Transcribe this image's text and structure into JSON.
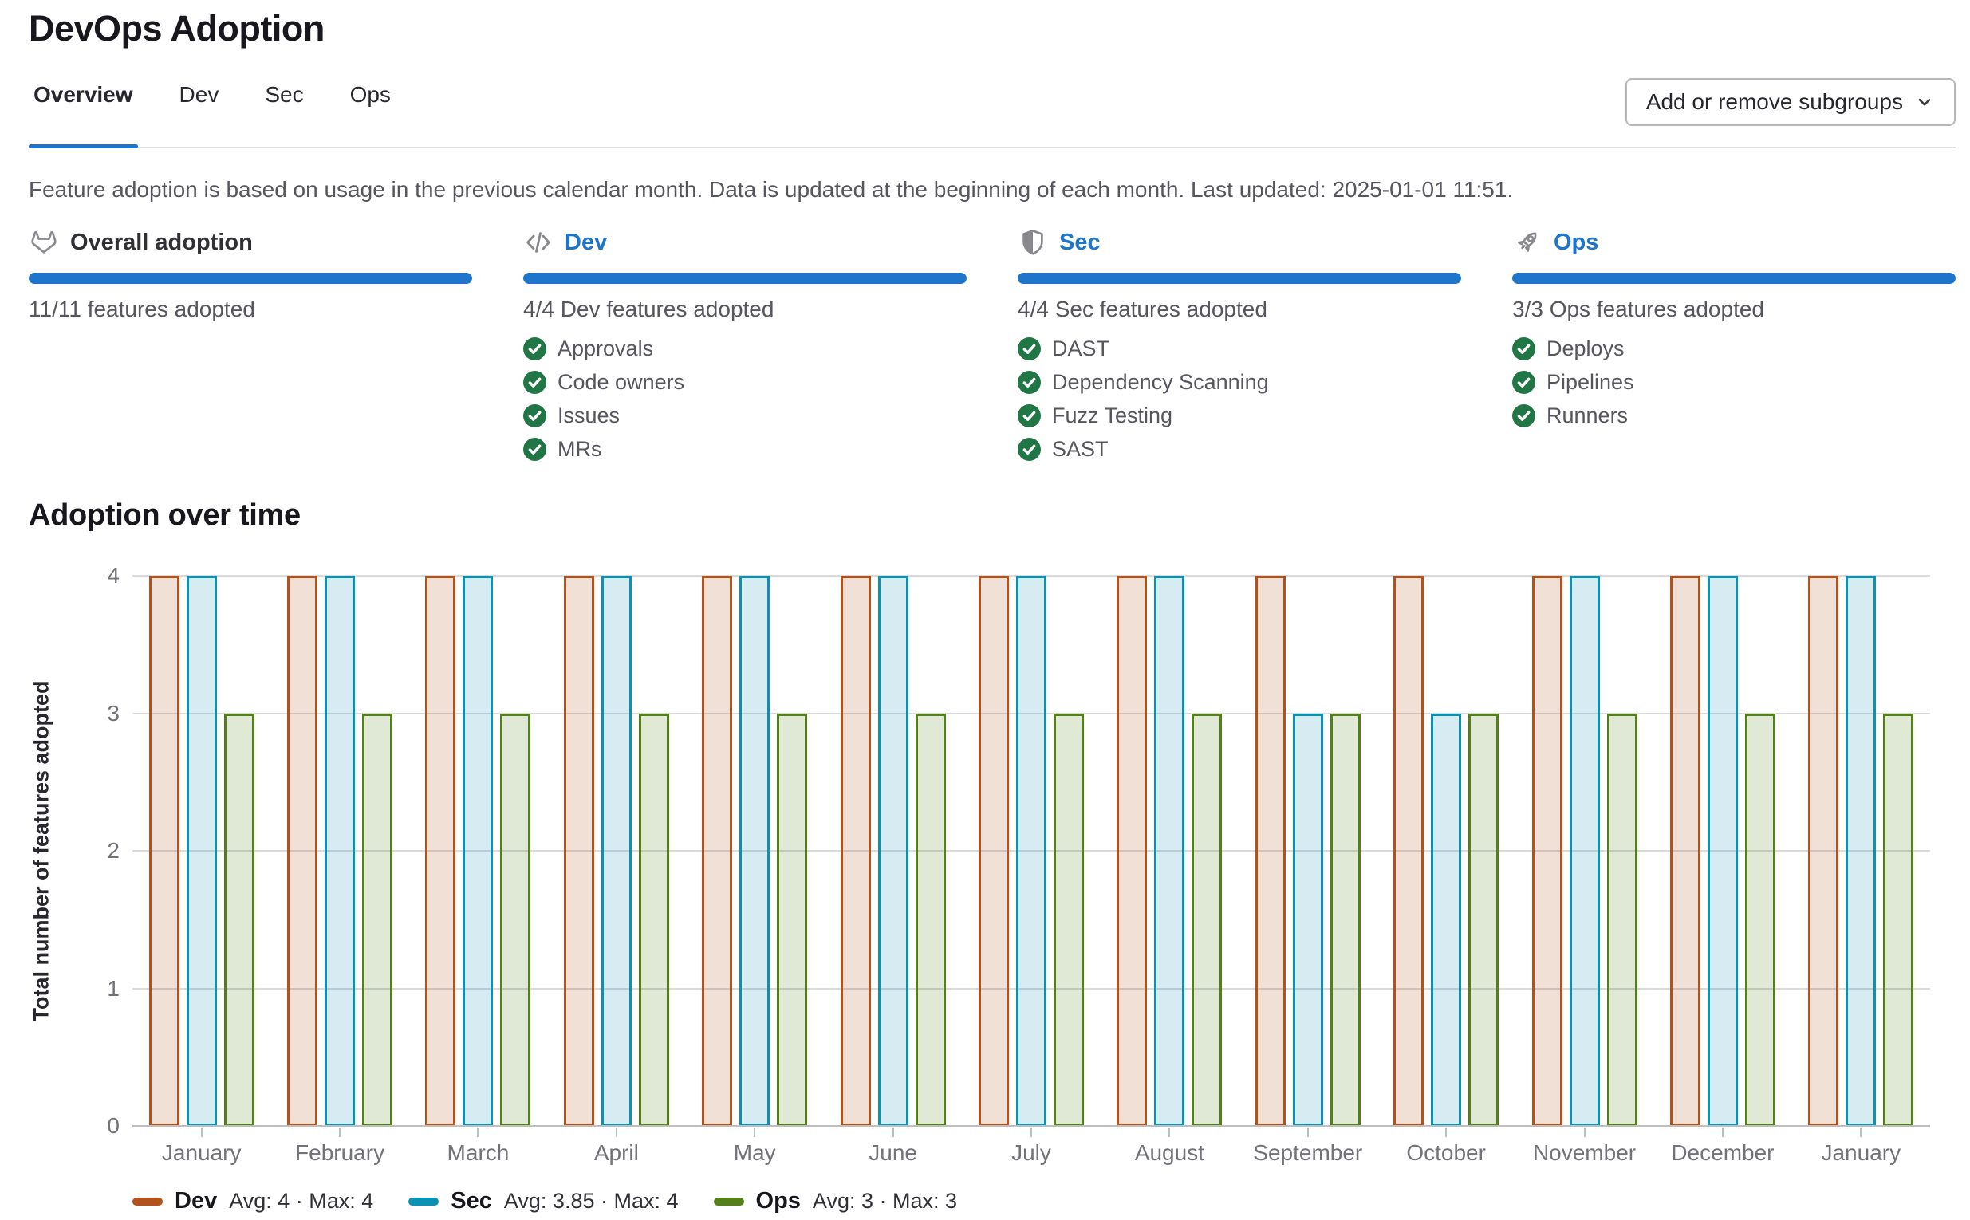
{
  "header": {
    "title": "DevOps Adoption",
    "tabs": [
      {
        "label": "Overview",
        "active": true
      },
      {
        "label": "Dev",
        "active": false
      },
      {
        "label": "Sec",
        "active": false
      },
      {
        "label": "Ops",
        "active": false
      }
    ],
    "add_remove_button": {
      "label": "Add or remove subgroups",
      "icon": "chevron-down-icon"
    },
    "description": "Feature adoption is based on usage in the previous calendar month. Data is updated at the beginning of each month. Last updated: 2025-01-01 11:51."
  },
  "cards": [
    {
      "id": "overall",
      "icon": "tanuki-icon",
      "title": "Overall adoption",
      "title_is_link": false,
      "progress_pct": 100,
      "count_text": "11/11 features adopted",
      "features": []
    },
    {
      "id": "dev",
      "icon": "code-icon",
      "title": "Dev",
      "title_is_link": true,
      "progress_pct": 100,
      "count_text": "4/4 Dev features adopted",
      "features": [
        "Approvals",
        "Code owners",
        "Issues",
        "MRs"
      ]
    },
    {
      "id": "sec",
      "icon": "shield-icon",
      "title": "Sec",
      "title_is_link": true,
      "progress_pct": 100,
      "count_text": "4/4 Sec features adopted",
      "features": [
        "DAST",
        "Dependency Scanning",
        "Fuzz Testing",
        "SAST"
      ]
    },
    {
      "id": "ops",
      "icon": "rocket-icon",
      "title": "Ops",
      "title_is_link": true,
      "progress_pct": 100,
      "count_text": "3/3 Ops features adopted",
      "features": [
        "Deploys",
        "Pipelines",
        "Runners"
      ]
    }
  ],
  "chart_section": {
    "title": "Adoption over time"
  },
  "chart_data": {
    "type": "bar",
    "title": "Adoption over time",
    "xlabel": "",
    "ylabel": "Total number of features adopted",
    "ylim": [
      0,
      4
    ],
    "yticks": [
      0,
      1,
      2,
      3,
      4
    ],
    "grid": true,
    "legend_position": "bottom",
    "categories": [
      "January",
      "February",
      "March",
      "April",
      "May",
      "June",
      "July",
      "August",
      "September",
      "October",
      "November",
      "December",
      "January"
    ],
    "series": [
      {
        "name": "Dev",
        "values": [
          4,
          4,
          4,
          4,
          4,
          4,
          4,
          4,
          4,
          4,
          4,
          4,
          4
        ],
        "border_color": "#b2521c",
        "fill_color": "rgba(178,82,28,0.18)",
        "legend_stats": "Avg: 4 · Max: 4"
      },
      {
        "name": "Sec",
        "values": [
          4,
          4,
          4,
          4,
          4,
          4,
          4,
          4,
          3,
          3,
          4,
          4,
          4
        ],
        "border_color": "#0b91b1",
        "fill_color": "rgba(11,145,177,0.17)",
        "legend_stats": "Avg: 3.85 · Max: 4"
      },
      {
        "name": "Ops",
        "values": [
          3,
          3,
          3,
          3,
          3,
          3,
          3,
          3,
          3,
          3,
          3,
          3,
          3
        ],
        "border_color": "#548019",
        "fill_color": "rgba(84,128,25,0.18)",
        "legend_stats": "Avg: 3 · Max: 3"
      }
    ]
  },
  "colors": {
    "accent_blue": "#1f75cb",
    "check_green": "#217645",
    "icon_gray": "#89888d",
    "gridline": "#dadade",
    "axis_line": "#bfbfc2"
  }
}
